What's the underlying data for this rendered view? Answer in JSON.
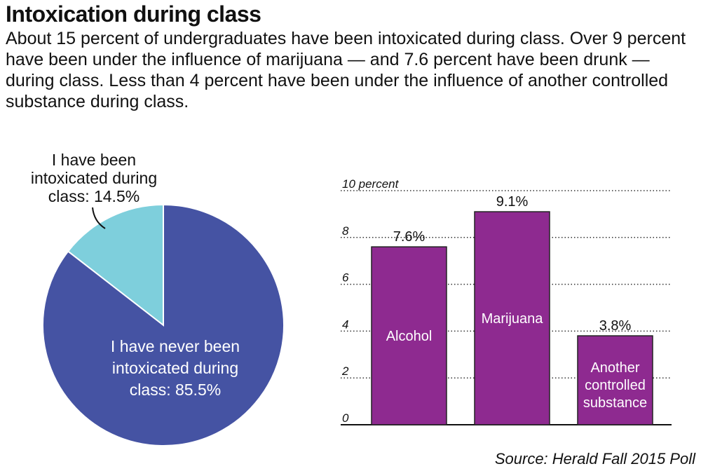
{
  "title": "Intoxication during class",
  "subtitle": "About 15 percent of undergraduates have been intoxicated during class. Over 9 percent have been under the influence of marijuana — and 7.6 percent have been drunk — during class. Less than 4 percent have been under the influence of another controlled substance during class.",
  "source": "Source: Herald Fall 2015 Poll",
  "colors": {
    "pie_major": "#4553A3",
    "pie_minor": "#7ECFDC",
    "bar": "#8E2A90"
  },
  "chart_data": [
    {
      "type": "pie",
      "slices": [
        {
          "label_lines": [
            "I have been",
            "intoxicated during",
            "class: 14.5%"
          ],
          "value": 14.5
        },
        {
          "label_lines": [
            "I have never been",
            "intoxicated during",
            "class: 85.5%"
          ],
          "value": 85.5
        }
      ]
    },
    {
      "type": "bar",
      "categories": [
        "Alcohol",
        "Marijuana",
        "Another controlled substance"
      ],
      "category_label_lines": [
        [
          "Alcohol"
        ],
        [
          "Marijuana"
        ],
        [
          "Another",
          "controlled",
          "substance"
        ]
      ],
      "values": [
        7.6,
        9.1,
        3.8
      ],
      "value_labels": [
        "7.6%",
        "9.1%",
        "3.8%"
      ],
      "ylim": [
        0,
        10
      ],
      "yticks": [
        0,
        2,
        4,
        6,
        8,
        10
      ],
      "ytick_labels": [
        "0",
        "2",
        "4",
        "6",
        "8",
        "10 percent"
      ],
      "grid": true
    }
  ]
}
